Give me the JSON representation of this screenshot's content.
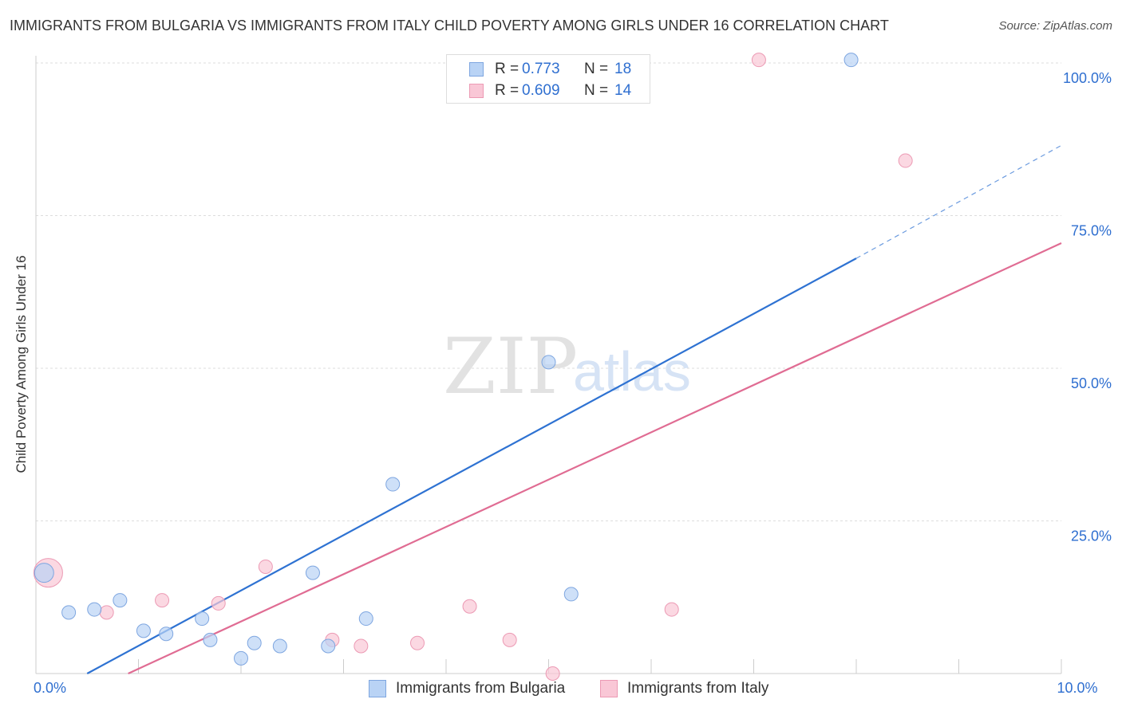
{
  "title": "IMMIGRANTS FROM BULGARIA VS IMMIGRANTS FROM ITALY CHILD POVERTY AMONG GIRLS UNDER 16 CORRELATION CHART",
  "source": "Source: ZipAtlas.com",
  "watermark": {
    "zip": "ZIP",
    "atlas": "atlas"
  },
  "legend_top": [
    {
      "r_label": "R =",
      "r_value": "0.773",
      "n_label": "N =",
      "n_value": "18"
    },
    {
      "r_label": "R =",
      "r_value": "0.609",
      "n_label": "N =",
      "n_value": "14"
    }
  ],
  "colors": {
    "bulgaria_fill": "#b9d3f5",
    "bulgaria_stroke": "#7ea6e0",
    "bulgaria_line": "#2e72d2",
    "italy_fill": "#f9c7d6",
    "italy_stroke": "#ec9ab4",
    "italy_line": "#e06c93",
    "tick_label": "#2f6fd0",
    "grid": "#dddddd"
  },
  "chart_data": {
    "type": "scatter",
    "title": "IMMIGRANTS FROM BULGARIA VS IMMIGRANTS FROM ITALY CHILD POVERTY AMONG GIRLS UNDER 16 CORRELATION CHART",
    "xlabel": "",
    "ylabel": "Child Poverty Among Girls Under 16",
    "xlim": [
      0,
      10
    ],
    "ylim": [
      0,
      100
    ],
    "x_tick_labels": [
      "0.0%",
      "10.0%"
    ],
    "x_tick_label_values": [
      0,
      10
    ],
    "y_ticks": [
      25,
      50,
      75,
      100
    ],
    "y_tick_labels": [
      "25.0%",
      "50.0%",
      "75.0%",
      "100.0%"
    ],
    "grid": true,
    "legend_position": "top-center",
    "series": [
      {
        "name": "Immigrants from Bulgaria",
        "R": 0.773,
        "N": 18,
        "points": [
          {
            "x": 0.08,
            "y": 16.5,
            "size": "large"
          },
          {
            "x": 0.32,
            "y": 10.0
          },
          {
            "x": 0.57,
            "y": 10.5
          },
          {
            "x": 0.82,
            "y": 12.0
          },
          {
            "x": 1.05,
            "y": 7.0
          },
          {
            "x": 1.27,
            "y": 6.5
          },
          {
            "x": 1.62,
            "y": 9.0
          },
          {
            "x": 1.7,
            "y": 5.5
          },
          {
            "x": 2.0,
            "y": 2.5
          },
          {
            "x": 2.13,
            "y": 5.0
          },
          {
            "x": 2.38,
            "y": 4.5
          },
          {
            "x": 2.7,
            "y": 16.5
          },
          {
            "x": 2.85,
            "y": 4.5
          },
          {
            "x": 3.22,
            "y": 9.0
          },
          {
            "x": 3.48,
            "y": 31.0
          },
          {
            "x": 5.0,
            "y": 51.0
          },
          {
            "x": 5.22,
            "y": 13.0
          },
          {
            "x": 7.95,
            "y": 100.5
          }
        ],
        "trend": {
          "x0": 0.5,
          "y0": 0.0,
          "x1": 8.0,
          "y1": 68.0,
          "dash_to_x": 10.0,
          "dash_to_y": 86.5
        }
      },
      {
        "name": "Immigrants from Italy",
        "R": 0.609,
        "N": 14,
        "points": [
          {
            "x": 0.12,
            "y": 16.5,
            "size": "large"
          },
          {
            "x": 0.69,
            "y": 10.0
          },
          {
            "x": 1.23,
            "y": 12.0
          },
          {
            "x": 1.78,
            "y": 11.5
          },
          {
            "x": 2.24,
            "y": 17.5
          },
          {
            "x": 2.89,
            "y": 5.5
          },
          {
            "x": 3.17,
            "y": 4.5
          },
          {
            "x": 3.72,
            "y": 5.0
          },
          {
            "x": 4.23,
            "y": 11.0
          },
          {
            "x": 4.62,
            "y": 5.5
          },
          {
            "x": 5.04,
            "y": 0.0
          },
          {
            "x": 6.2,
            "y": 10.5
          },
          {
            "x": 7.05,
            "y": 100.5
          },
          {
            "x": 8.48,
            "y": 84.0
          }
        ],
        "trend": {
          "x0": 0.9,
          "y0": 0.0,
          "x1": 10.0,
          "y1": 70.5
        }
      }
    ]
  },
  "legend_bottom": [
    {
      "label": "Immigrants from Bulgaria"
    },
    {
      "label": "Immigrants from Italy"
    }
  ]
}
